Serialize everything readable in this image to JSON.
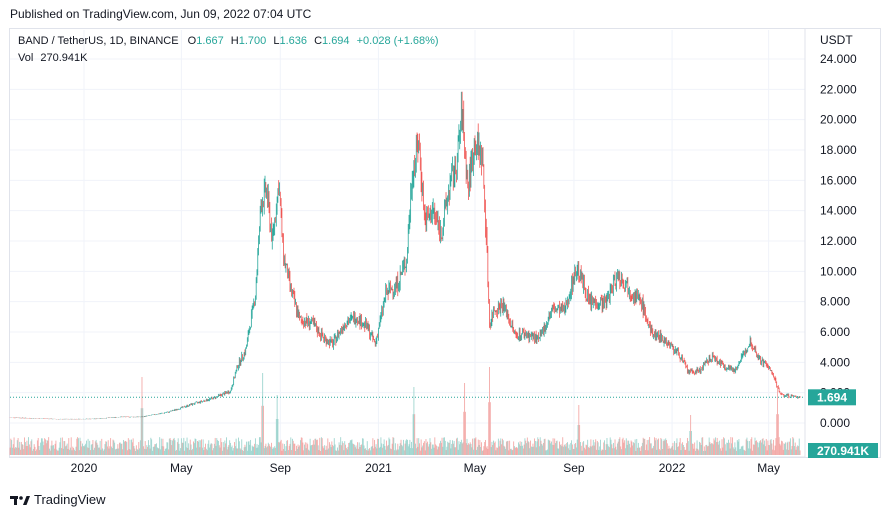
{
  "header": {
    "published_text": "Published on TradingView.com, Jun 09, 2022 07:04 UTC"
  },
  "legend": {
    "symbol": "BAND / TetherUS, 1D, BINANCE",
    "o_label": "O",
    "o_value": "1.667",
    "h_label": "H",
    "h_value": "1.700",
    "l_label": "L",
    "l_value": "1.636",
    "c_label": "C",
    "c_value": "1.694",
    "change": "+0.028 (+1.68%)",
    "vol_label": "Vol",
    "vol_value": "270.941K"
  },
  "footer": {
    "brand": "TradingView"
  },
  "colors": {
    "up": "#26a69a",
    "down": "#ef5350",
    "vol_up": "#9fd5cf",
    "vol_down": "#f3aaa8",
    "grid": "#f0f3fa",
    "axis_text": "#131722",
    "price_line": "#26a69a"
  },
  "chart_data": {
    "type": "candlestick",
    "currency_label": "USDT",
    "y_ticks": [
      "0.000",
      "2.000",
      "4.000",
      "6.000",
      "8.000",
      "10.000",
      "12.000",
      "14.000",
      "16.000",
      "18.000",
      "20.000",
      "22.000",
      "24.000"
    ],
    "ylim": [
      0,
      24.5
    ],
    "x_ticks": [
      "2020",
      "May",
      "Sep",
      "2021",
      "May",
      "Sep",
      "2022",
      "May"
    ],
    "last_price_label": "1.694",
    "last_volume_label": "270.941K",
    "xlim": [
      "2019-10-01",
      "2022-06-09"
    ],
    "close_series": [
      [
        "2019-10-01",
        0.36
      ],
      [
        "2019-12-01",
        0.25
      ],
      [
        "2020-01-15",
        0.27
      ],
      [
        "2020-02-15",
        0.4
      ],
      [
        "2020-03-13",
        0.4
      ],
      [
        "2020-04-15",
        0.72
      ],
      [
        "2020-05-15",
        1.25
      ],
      [
        "2020-06-10",
        1.65
      ],
      [
        "2020-07-01",
        2.1
      ],
      [
        "2020-07-10",
        3.8
      ],
      [
        "2020-07-20",
        4.8
      ],
      [
        "2020-08-01",
        8.5
      ],
      [
        "2020-08-08",
        14.5
      ],
      [
        "2020-08-15",
        15.3
      ],
      [
        "2020-08-22",
        12.0
      ],
      [
        "2020-08-30",
        15.8
      ],
      [
        "2020-09-05",
        11.0
      ],
      [
        "2020-09-15",
        8.6
      ],
      [
        "2020-09-25",
        6.8
      ],
      [
        "2020-10-10",
        6.6
      ],
      [
        "2020-10-25",
        5.6
      ],
      [
        "2020-11-05",
        5.2
      ],
      [
        "2020-11-20",
        6.6
      ],
      [
        "2020-12-05",
        7.0
      ],
      [
        "2020-12-18",
        6.3
      ],
      [
        "2020-12-28",
        5.2
      ],
      [
        "2021-01-10",
        8.5
      ],
      [
        "2021-01-25",
        9.2
      ],
      [
        "2021-02-05",
        10.8
      ],
      [
        "2021-02-12",
        16.5
      ],
      [
        "2021-02-20",
        18.5
      ],
      [
        "2021-02-28",
        13.2
      ],
      [
        "2021-03-10",
        14.0
      ],
      [
        "2021-03-20",
        12.5
      ],
      [
        "2021-03-30",
        15.5
      ],
      [
        "2021-04-08",
        17.0
      ],
      [
        "2021-04-15",
        20.5
      ],
      [
        "2021-04-22",
        15.5
      ],
      [
        "2021-05-01",
        18.5
      ],
      [
        "2021-05-10",
        17.5
      ],
      [
        "2021-05-15",
        12.5
      ],
      [
        "2021-05-19",
        6.5
      ],
      [
        "2021-05-25",
        7.5
      ],
      [
        "2021-06-05",
        7.8
      ],
      [
        "2021-06-20",
        5.8
      ],
      [
        "2021-07-01",
        5.9
      ],
      [
        "2021-07-20",
        5.5
      ],
      [
        "2021-08-05",
        7.5
      ],
      [
        "2021-08-20",
        7.4
      ],
      [
        "2021-09-05",
        10.3
      ],
      [
        "2021-09-20",
        8.0
      ],
      [
        "2021-10-10",
        7.9
      ],
      [
        "2021-10-25",
        9.8
      ],
      [
        "2021-11-10",
        8.8
      ],
      [
        "2021-11-25",
        7.8
      ],
      [
        "2021-12-05",
        6.0
      ],
      [
        "2021-12-20",
        5.6
      ],
      [
        "2022-01-01",
        5.0
      ],
      [
        "2022-01-10",
        4.5
      ],
      [
        "2022-01-22",
        3.3
      ],
      [
        "2022-02-05",
        3.5
      ],
      [
        "2022-02-20",
        4.4
      ],
      [
        "2022-03-05",
        3.8
      ],
      [
        "2022-03-20",
        3.5
      ],
      [
        "2022-04-01",
        4.6
      ],
      [
        "2022-04-08",
        5.4
      ],
      [
        "2022-04-20",
        4.2
      ],
      [
        "2022-05-01",
        3.7
      ],
      [
        "2022-05-10",
        2.7
      ],
      [
        "2022-05-15",
        1.9
      ],
      [
        "2022-05-25",
        1.8
      ],
      [
        "2022-06-09",
        1.694
      ]
    ],
    "volume_peaks": [
      [
        "2020-03-13",
        3.9
      ],
      [
        "2020-08-10",
        4.1
      ],
      [
        "2020-08-28",
        3.0
      ],
      [
        "2021-02-14",
        3.4
      ],
      [
        "2021-04-18",
        3.6
      ],
      [
        "2021-05-19",
        4.4
      ],
      [
        "2021-09-07",
        2.5
      ],
      [
        "2022-01-24",
        2.0
      ],
      [
        "2022-05-12",
        3.4
      ]
    ]
  }
}
